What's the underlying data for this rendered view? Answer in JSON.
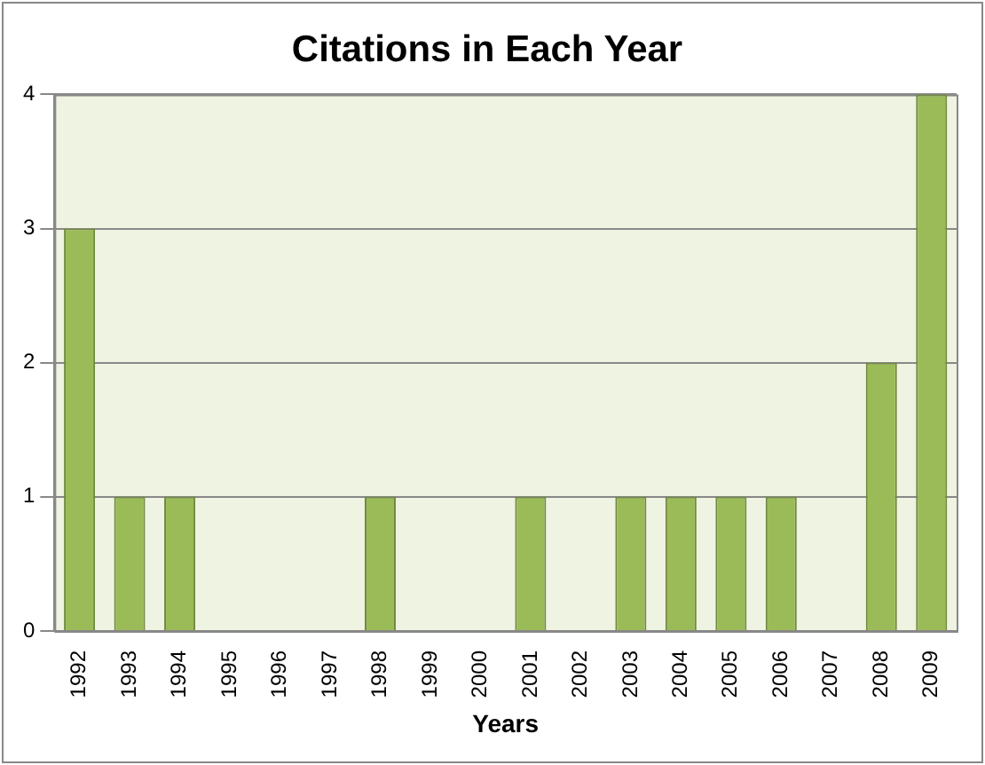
{
  "chart_data": {
    "type": "bar",
    "title": "Citations in Each Year",
    "xlabel": "Years",
    "categories": [
      "1992",
      "1993",
      "1994",
      "1995",
      "1996",
      "1997",
      "1998",
      "1999",
      "2000",
      "2001",
      "2002",
      "2003",
      "2004",
      "2005",
      "2006",
      "2007",
      "2008",
      "2009"
    ],
    "values": [
      3,
      1,
      1,
      0,
      0,
      0,
      1,
      0,
      0,
      1,
      0,
      1,
      1,
      1,
      1,
      0,
      2,
      4
    ],
    "color": "#9bbb59",
    "ylim": [
      0,
      4
    ],
    "yticks": [
      0,
      1,
      2,
      3,
      4
    ],
    "grid": "y"
  }
}
